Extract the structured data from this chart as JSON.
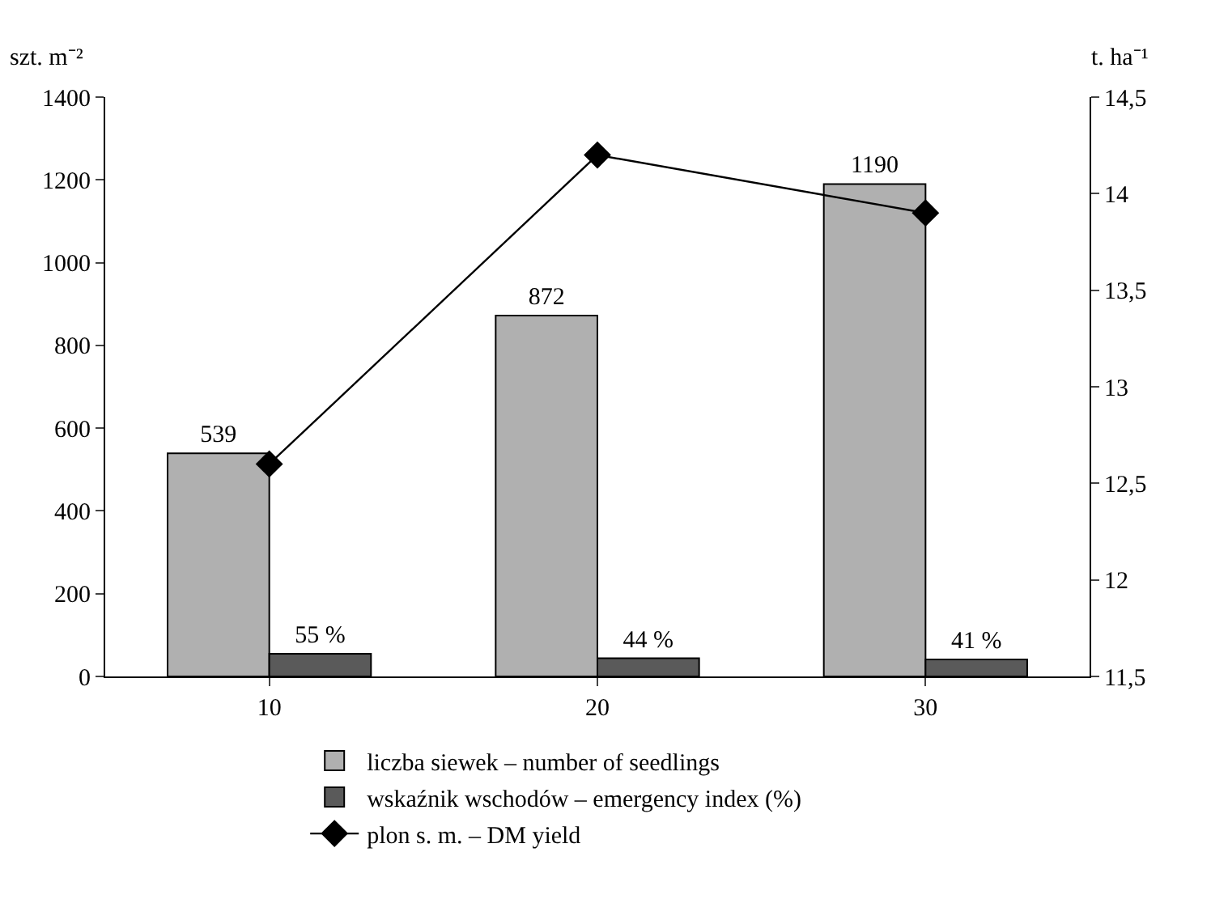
{
  "chart_data": {
    "type": "bar",
    "categories": [
      "10",
      "20",
      "30"
    ],
    "ylabel": "szt. m⁻²",
    "y2label": "t. ha⁻¹",
    "series": [
      {
        "name": "liczba siewek – number of seedlings",
        "color": "#b0b0b0",
        "values": [
          539,
          872,
          1190
        ],
        "value_labels": [
          "539",
          "872",
          "1190"
        ]
      },
      {
        "name": "wskaźnik wschodów – emergency index (%)",
        "color": "#5a5a5a",
        "values": [
          55,
          44,
          41
        ],
        "value_labels": [
          "55 %",
          "44 %",
          "41 %"
        ]
      },
      {
        "name": "plon s. m. – DM yield",
        "type": "line",
        "axis": "y2",
        "color": "#000000",
        "marker": "diamond",
        "values": [
          12.6,
          14.2,
          13.9
        ]
      }
    ],
    "ylim": [
      0,
      1400
    ],
    "yticks": [
      0,
      200,
      400,
      600,
      800,
      1000,
      1200,
      1400
    ],
    "y2lim": [
      11.5,
      14.5
    ],
    "y2ticks": [
      {
        "value": 11.5,
        "label": "11,5"
      },
      {
        "value": 12,
        "label": "12"
      },
      {
        "value": 12.5,
        "label": "12,5"
      },
      {
        "value": 13,
        "label": "13"
      },
      {
        "value": 13.5,
        "label": "13,5"
      },
      {
        "value": 14,
        "label": "14"
      },
      {
        "value": 14.5,
        "label": "14,5"
      }
    ],
    "grid": false,
    "legend": "bottom"
  }
}
